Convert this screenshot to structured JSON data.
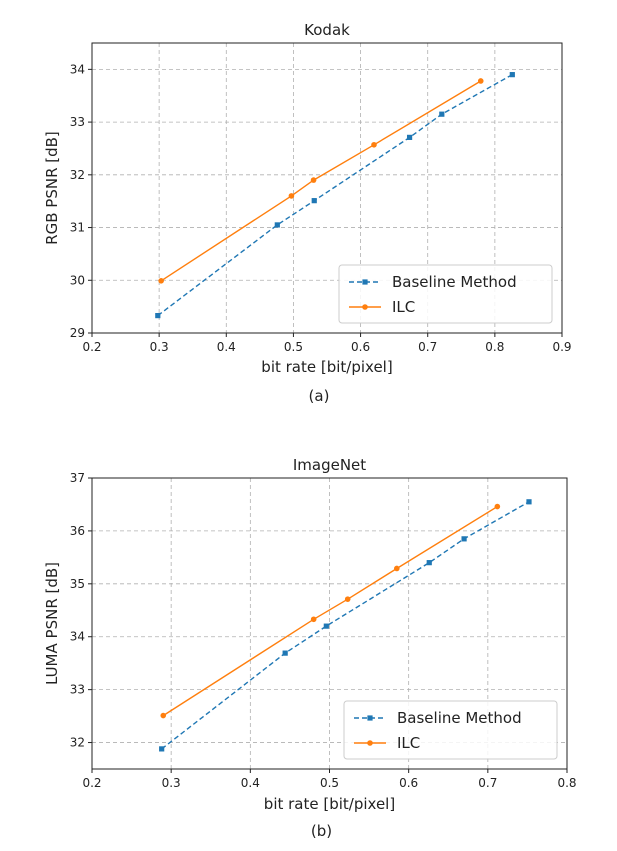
{
  "chart_data": [
    {
      "type": "line",
      "title": "Kodak",
      "xlabel": "bit rate [bit/pixel]",
      "ylabel": "RGB PSNR [dB]",
      "caption": "(a)",
      "xlim": [
        0.2,
        0.9
      ],
      "ylim": [
        29,
        34.5
      ],
      "xticks": [
        0.2,
        0.3,
        0.4,
        0.5,
        0.6,
        0.7,
        0.8,
        0.9
      ],
      "xtick_labels": [
        "0.2",
        "0.3",
        "0.4",
        "0.5",
        "0.6",
        "0.7",
        "0.8",
        "0.9"
      ],
      "yticks": [
        29,
        30,
        31,
        32,
        33,
        34
      ],
      "ytick_labels": [
        "29",
        "30",
        "31",
        "32",
        "33",
        "34"
      ],
      "grid": true,
      "legend_position": "lower-right",
      "series": [
        {
          "name": "Baseline Method",
          "color": "#1f77b4",
          "linestyle": "dashed",
          "marker": "square",
          "x": [
            0.298,
            0.476,
            0.531,
            0.673,
            0.721,
            0.826
          ],
          "y": [
            29.33,
            31.05,
            31.51,
            32.71,
            33.15,
            33.9
          ]
        },
        {
          "name": "ILC",
          "color": "#ff7f0e",
          "linestyle": "solid",
          "marker": "circle",
          "x": [
            0.303,
            0.497,
            0.53,
            0.62,
            0.779
          ],
          "y": [
            29.99,
            31.6,
            31.9,
            32.57,
            33.78
          ]
        }
      ]
    },
    {
      "type": "line",
      "title": "ImageNet",
      "xlabel": "bit rate [bit/pixel]",
      "ylabel": "LUMA PSNR [dB]",
      "caption": "(b)",
      "xlim": [
        0.2,
        0.8
      ],
      "ylim": [
        31.5,
        37
      ],
      "xticks": [
        0.2,
        0.3,
        0.4,
        0.5,
        0.6,
        0.7,
        0.8
      ],
      "xtick_labels": [
        "0.2",
        "0.3",
        "0.4",
        "0.5",
        "0.6",
        "0.7",
        "0.8"
      ],
      "yticks": [
        32,
        33,
        34,
        35,
        36,
        37
      ],
      "ytick_labels": [
        "32",
        "33",
        "34",
        "35",
        "36",
        "37"
      ],
      "grid": true,
      "legend_position": "lower-right",
      "series": [
        {
          "name": "Baseline Method",
          "color": "#1f77b4",
          "linestyle": "dashed",
          "marker": "square",
          "x": [
            0.288,
            0.444,
            0.496,
            0.626,
            0.67,
            0.752
          ],
          "y": [
            31.88,
            33.69,
            34.2,
            35.4,
            35.85,
            36.55
          ]
        },
        {
          "name": "ILC",
          "color": "#ff7f0e",
          "linestyle": "solid",
          "marker": "circle",
          "x": [
            0.29,
            0.48,
            0.523,
            0.585,
            0.712
          ],
          "y": [
            32.51,
            34.33,
            34.71,
            35.29,
            36.46
          ]
        }
      ]
    }
  ]
}
